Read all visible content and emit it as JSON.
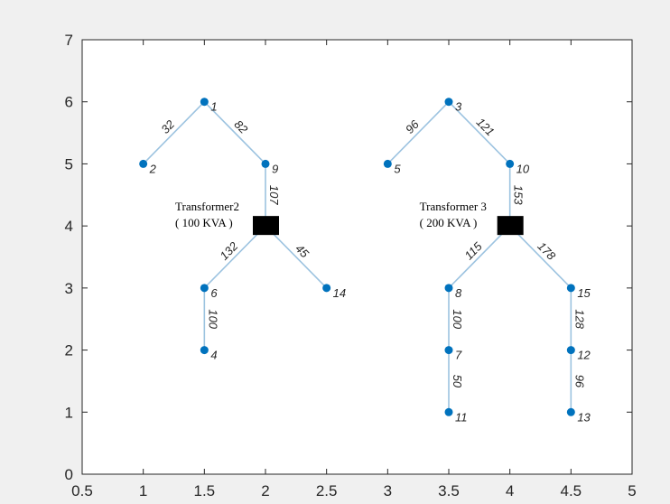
{
  "chart_data": {
    "type": "scatter",
    "title": "",
    "xlabel": "",
    "ylabel": "",
    "xlim": [
      0.5,
      5
    ],
    "ylim": [
      0,
      7
    ],
    "xticks": [
      0.5,
      1,
      1.5,
      2,
      2.5,
      3,
      3.5,
      4,
      4.5,
      5
    ],
    "xtick_labels": [
      "0.5",
      "1",
      "1.5",
      "2",
      "2.5",
      "3",
      "3.5",
      "4",
      "4.5",
      "5"
    ],
    "yticks": [
      0,
      1,
      2,
      3,
      4,
      5,
      6,
      7
    ],
    "ytick_labels": [
      "0",
      "1",
      "2",
      "3",
      "4",
      "5",
      "6",
      "7"
    ],
    "grid": false,
    "colors": {
      "node": "#0072BD",
      "edge": "#9cc3e0",
      "axes": "#262626",
      "transformer": "#000000"
    },
    "nodes": [
      {
        "id": "1",
        "x": 1.5,
        "y": 6
      },
      {
        "id": "2",
        "x": 1,
        "y": 5
      },
      {
        "id": "9",
        "x": 2,
        "y": 5
      },
      {
        "id": "6",
        "x": 1.5,
        "y": 3
      },
      {
        "id": "4",
        "x": 1.5,
        "y": 2
      },
      {
        "id": "14",
        "x": 2.5,
        "y": 3
      },
      {
        "id": "3",
        "x": 3.5,
        "y": 6
      },
      {
        "id": "5",
        "x": 3,
        "y": 5
      },
      {
        "id": "10",
        "x": 4,
        "y": 5
      },
      {
        "id": "8",
        "x": 3.5,
        "y": 3
      },
      {
        "id": "7",
        "x": 3.5,
        "y": 2
      },
      {
        "id": "11",
        "x": 3.5,
        "y": 1
      },
      {
        "id": "15",
        "x": 4.5,
        "y": 3
      },
      {
        "id": "12",
        "x": 4.5,
        "y": 2
      },
      {
        "id": "13",
        "x": 4.5,
        "y": 1
      }
    ],
    "transformers": [
      {
        "x": 2,
        "y": 4,
        "name": "Transformer2",
        "rating": "( 100 KVA )"
      },
      {
        "x": 4,
        "y": 4,
        "name": "Transformer 3",
        "rating": "( 200 KVA )"
      }
    ],
    "edges": [
      {
        "from": [
          1.5,
          6
        ],
        "to": [
          1,
          5
        ],
        "label": "32"
      },
      {
        "from": [
          1.5,
          6
        ],
        "to": [
          2,
          5
        ],
        "label": "82"
      },
      {
        "from": [
          2,
          5
        ],
        "to": [
          2,
          4
        ],
        "label": "107"
      },
      {
        "from": [
          2,
          4
        ],
        "to": [
          1.5,
          3
        ],
        "label": "132"
      },
      {
        "from": [
          2,
          4
        ],
        "to": [
          2.5,
          3
        ],
        "label": "45"
      },
      {
        "from": [
          1.5,
          3
        ],
        "to": [
          1.5,
          2
        ],
        "label": "100"
      },
      {
        "from": [
          3.5,
          6
        ],
        "to": [
          3,
          5
        ],
        "label": "96"
      },
      {
        "from": [
          3.5,
          6
        ],
        "to": [
          4,
          5
        ],
        "label": "121"
      },
      {
        "from": [
          4,
          5
        ],
        "to": [
          4,
          4
        ],
        "label": "153"
      },
      {
        "from": [
          4,
          4
        ],
        "to": [
          3.5,
          3
        ],
        "label": "115"
      },
      {
        "from": [
          4,
          4
        ],
        "to": [
          4.5,
          3
        ],
        "label": "178"
      },
      {
        "from": [
          3.5,
          3
        ],
        "to": [
          3.5,
          2
        ],
        "label": "100"
      },
      {
        "from": [
          3.5,
          2
        ],
        "to": [
          3.5,
          1
        ],
        "label": "50"
      },
      {
        "from": [
          4.5,
          3
        ],
        "to": [
          4.5,
          2
        ],
        "label": "128"
      },
      {
        "from": [
          4.5,
          2
        ],
        "to": [
          4.5,
          1
        ],
        "label": "96"
      }
    ]
  }
}
